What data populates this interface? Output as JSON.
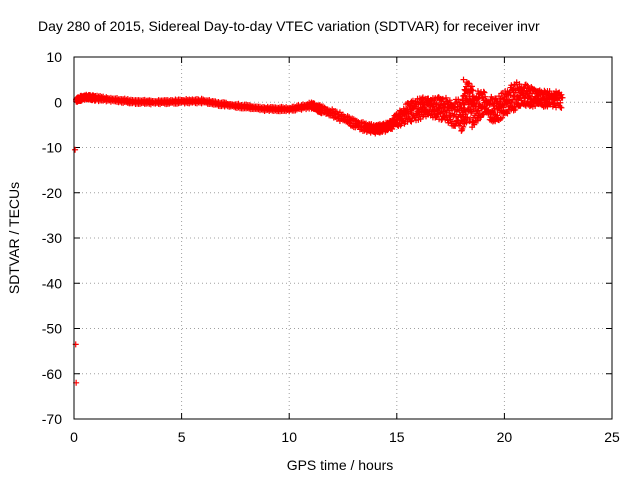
{
  "chart_data": {
    "type": "scatter",
    "title": "Day 280 of 2015, Sidereal Day-to-day VTEC variation (SDTVAR) for receiver invr",
    "xlabel": "GPS time / hours",
    "ylabel": "SDTVAR / TECUs",
    "xlim": [
      0,
      25
    ],
    "ylim": [
      -70,
      10
    ],
    "xticks": [
      0,
      5,
      10,
      15,
      20,
      25
    ],
    "yticks": [
      10,
      0,
      -10,
      -20,
      -30,
      -40,
      -50,
      -60,
      -70
    ],
    "grid": true,
    "series": [
      {
        "name": "SDTVAR",
        "color": "#ff0000",
        "marker": "plus",
        "x": [
          0.1,
          0.3,
          0.5,
          0.7,
          0.9,
          1.2,
          1.5,
          2.0,
          2.5,
          3.0,
          3.5,
          4.0,
          4.5,
          5.0,
          5.5,
          6.0,
          6.5,
          7.0,
          7.5,
          8.0,
          8.5,
          9.0,
          9.5,
          10.0,
          10.5,
          11.0,
          11.3,
          11.8,
          12.3,
          12.8,
          13.3,
          13.7,
          14.0,
          14.4,
          14.8,
          15.1,
          15.4,
          15.8,
          16.2,
          16.6,
          17.0,
          17.4,
          17.8,
          18.1,
          18.2,
          18.3,
          18.5,
          18.8,
          19.2,
          19.5,
          19.8,
          20.1,
          20.4,
          20.7,
          21.0,
          21.3,
          21.6,
          22.0,
          22.4,
          22.7,
          0.05,
          0.08,
          0.1
        ],
        "y": [
          0.5,
          1.2,
          1.5,
          1.6,
          1.0,
          1.0,
          0.8,
          0.5,
          0.0,
          0.0,
          0.3,
          0.0,
          0.2,
          0.4,
          0.3,
          0.5,
          0.0,
          -0.5,
          -0.8,
          -1.0,
          -1.2,
          -1.5,
          -1.8,
          -1.8,
          -1.5,
          -0.5,
          -1.0,
          -2.5,
          -3.5,
          -4.5,
          -5.5,
          -6.0,
          -6.5,
          -6.0,
          -5.0,
          -3.5,
          -2.0,
          -1.0,
          0.0,
          0.5,
          0.5,
          -1.0,
          -4.0,
          5.0,
          2.5,
          0.0,
          -5.5,
          2.0,
          0.0,
          -4.0,
          -1.0,
          0.5,
          3.0,
          4.0,
          2.0,
          3.0,
          2.5,
          2.0,
          1.5,
          1.0,
          -10.5,
          -53.5,
          -62.0
        ],
        "band": {
          "x": [
            0.1,
            0.5,
            1.0,
            2.0,
            3.0,
            4.0,
            5.0,
            6.0,
            7.0,
            8.0,
            9.0,
            10.0,
            11.0,
            11.5,
            12.5,
            13.5,
            14.0,
            14.5,
            15.0,
            15.5,
            16.0,
            16.5,
            17.0,
            17.5,
            18.0,
            18.3,
            18.6,
            19.0,
            19.5,
            20.0,
            20.5,
            21.0,
            21.5,
            22.0,
            22.7
          ],
          "ylo": [
            0.0,
            0.5,
            0.3,
            0.0,
            -0.5,
            -0.5,
            -0.3,
            -0.3,
            -1.0,
            -1.5,
            -2.0,
            -2.0,
            -1.5,
            -2.5,
            -4.5,
            -6.5,
            -7.0,
            -6.5,
            -5.5,
            -4.5,
            -4.0,
            -3.0,
            -4.0,
            -5.0,
            -6.5,
            -4.0,
            -5.0,
            -3.0,
            -5.0,
            -3.0,
            -2.0,
            -1.0,
            -1.0,
            -1.0,
            -1.5
          ],
          "yhi": [
            1.0,
            1.8,
            1.5,
            1.0,
            0.5,
            0.6,
            0.7,
            0.8,
            0.0,
            -0.5,
            -1.0,
            -1.0,
            0.0,
            -0.5,
            -2.5,
            -4.5,
            -5.0,
            -4.5,
            -2.5,
            0.0,
            1.0,
            1.2,
            1.2,
            1.0,
            0.5,
            5.5,
            2.5,
            2.5,
            1.0,
            2.5,
            4.5,
            4.0,
            3.0,
            2.5,
            2.5
          ]
        }
      }
    ]
  }
}
